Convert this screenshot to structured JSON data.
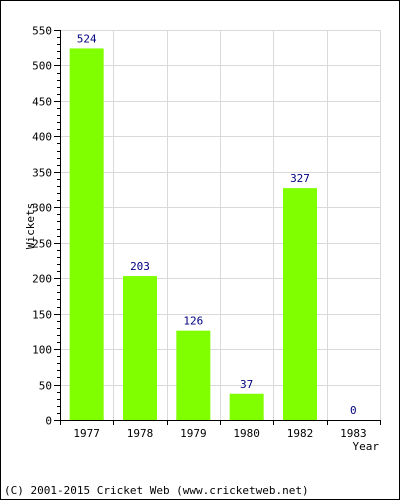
{
  "chart_data": {
    "type": "bar",
    "categories": [
      "1977",
      "1978",
      "1979",
      "1980",
      "1982",
      "1983"
    ],
    "values": [
      524,
      203,
      126,
      37,
      327,
      0
    ],
    "data_labels": [
      "524",
      "203",
      "126",
      "37",
      "327",
      "0"
    ],
    "xlabel": "Year",
    "ylabel": "Wickets",
    "ylim": [
      0,
      550
    ],
    "y_ticks": [
      0,
      50,
      100,
      150,
      200,
      250,
      300,
      350,
      400,
      450,
      500,
      550
    ],
    "y_minor_step": 10,
    "grid": true,
    "bar_color": "#80ff00",
    "label_color": "#000080",
    "grid_color": "#d9d9d9"
  },
  "footer": {
    "copyright": "(C) 2001-2015 Cricket Web (www.cricketweb.net)"
  }
}
